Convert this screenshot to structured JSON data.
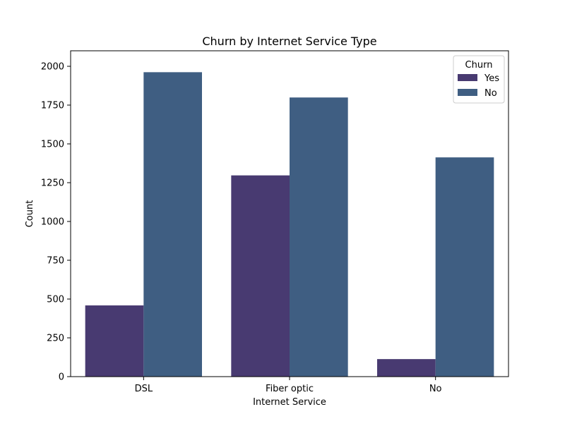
{
  "chart_data": {
    "type": "bar",
    "title": "Churn by Internet Service Type",
    "xlabel": "Internet Service",
    "ylabel": "Count",
    "categories": [
      "DSL",
      "Fiber optic",
      "No"
    ],
    "series": [
      {
        "name": "Yes",
        "values": [
          459,
          1297,
          113
        ],
        "color": "#483a71"
      },
      {
        "name": "No",
        "values": [
          1962,
          1799,
          1413
        ],
        "color": "#3f5e82"
      }
    ],
    "ylim": [
      0,
      2100
    ],
    "yticks": [
      0,
      250,
      500,
      750,
      1000,
      1250,
      1500,
      1750,
      2000
    ],
    "grid": false,
    "legend": {
      "title": "Churn",
      "position": "top-right"
    }
  }
}
